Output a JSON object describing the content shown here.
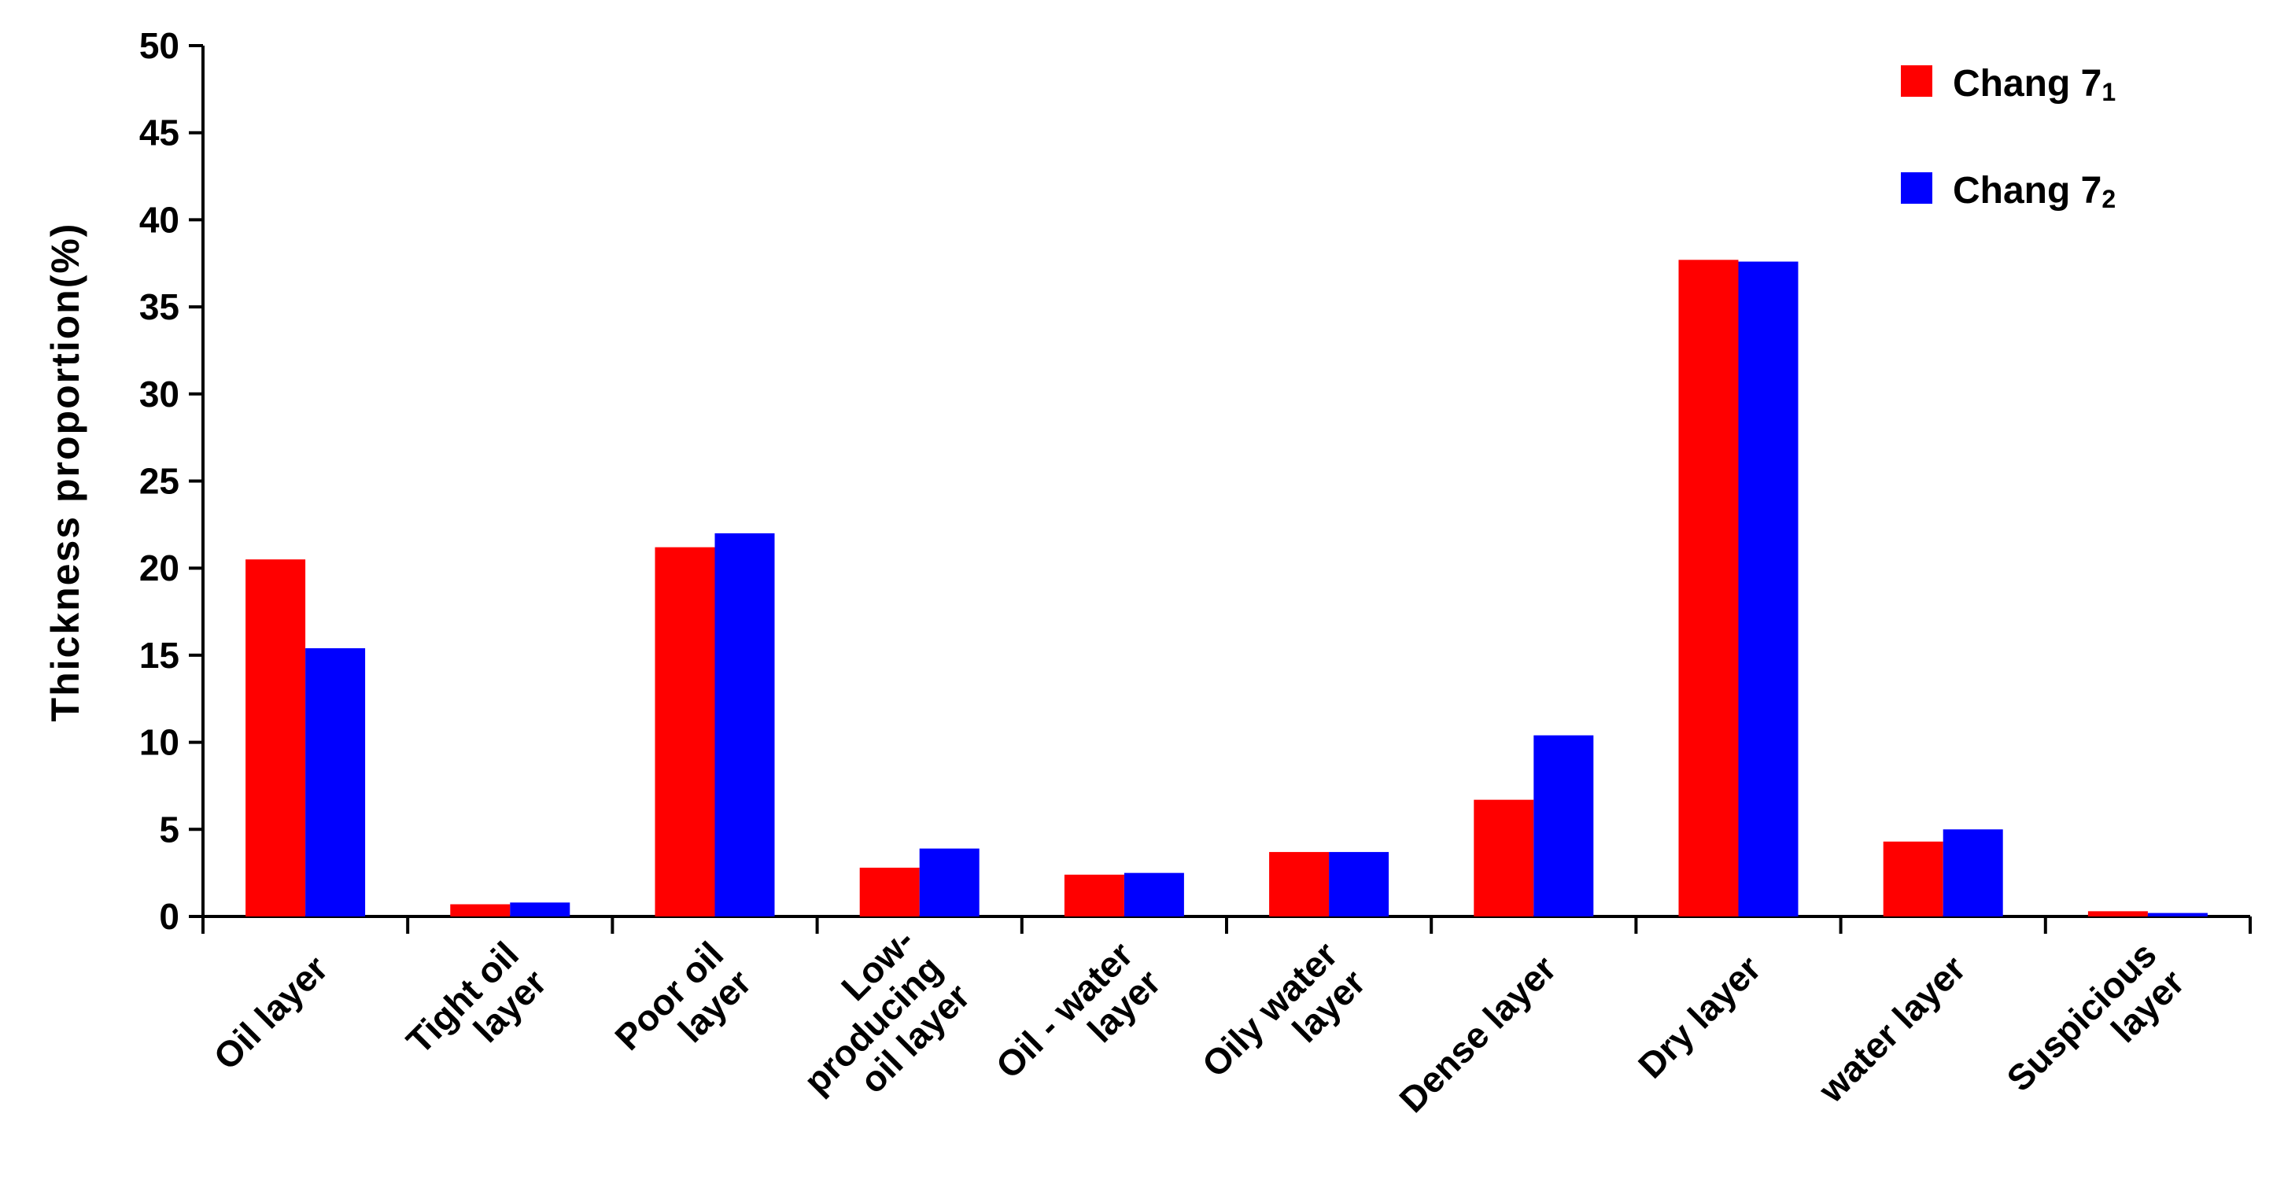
{
  "chart_data": {
    "type": "bar",
    "title": "",
    "xlabel": "",
    "ylabel": "Thickness proportion(%)",
    "ylim": [
      0,
      50
    ],
    "yticks": [
      0,
      5,
      10,
      15,
      20,
      25,
      30,
      35,
      40,
      45,
      50
    ],
    "grid": false,
    "legend_position": "top-right",
    "categories": [
      [
        "Oil layer"
      ],
      [
        "Tight oil",
        "layer"
      ],
      [
        "Poor oil",
        "layer"
      ],
      [
        "Low-",
        "producing",
        "oil layer"
      ],
      [
        "Oil - water",
        "layer"
      ],
      [
        "Oily water",
        "layer"
      ],
      [
        "Dense layer"
      ],
      [
        "Dry layer"
      ],
      [
        "water layer"
      ],
      [
        "Suspicious",
        "layer"
      ]
    ],
    "series": [
      {
        "name": "Chang 7",
        "subscript": "1",
        "color": "#ff0000",
        "values": [
          20.5,
          0.7,
          21.2,
          2.8,
          2.4,
          3.7,
          6.7,
          37.7,
          4.3,
          0.3
        ]
      },
      {
        "name": "Chang 7",
        "subscript": "2",
        "color": "#0000ff",
        "values": [
          15.4,
          0.8,
          22.0,
          3.9,
          2.5,
          3.7,
          10.4,
          37.6,
          5.0,
          0.2
        ]
      }
    ]
  }
}
